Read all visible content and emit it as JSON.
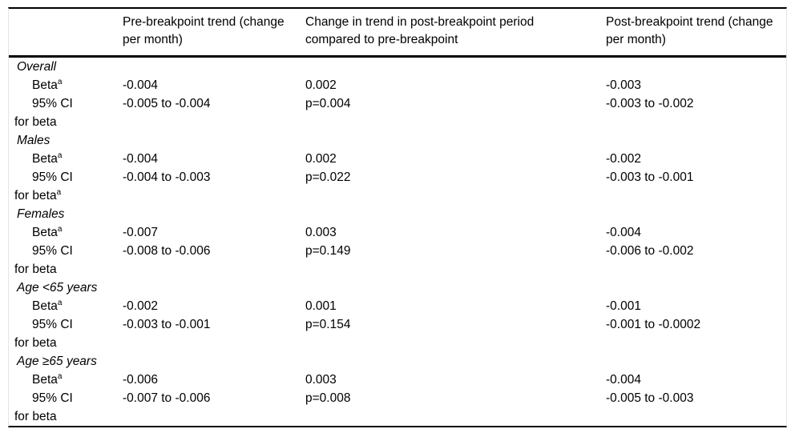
{
  "table": {
    "columns": {
      "label": "",
      "pre": "Pre-breakpoint trend (change per month)",
      "change": "Change in trend in post-breakpoint period compared to pre-breakpoint",
      "post": "Post-breakpoint trend (change per month)"
    },
    "sections": [
      {
        "group": "Overall",
        "beta": {
          "label": "Beta",
          "sup": "a",
          "pre": "-0.004",
          "change": "0.002",
          "post": "-0.003"
        },
        "ci": {
          "line1": "95% CI",
          "line2": "for beta",
          "sup": "",
          "pre": "-0.005 to -0.004",
          "change": "p=0.004",
          "post": "-0.003 to -0.002"
        }
      },
      {
        "group": "Males",
        "beta": {
          "label": "Beta",
          "sup": "a",
          "pre": "-0.004",
          "change": "0.002",
          "post": "-0.002"
        },
        "ci": {
          "line1": "95% CI",
          "line2": "for beta",
          "sup": "a",
          "pre": "-0.004 to -0.003",
          "change": "p=0.022",
          "post": "-0.003 to -0.001"
        }
      },
      {
        "group": "Females",
        "beta": {
          "label": "Beta",
          "sup": "a",
          "pre": "-0.007",
          "change": "0.003",
          "post": "-0.004"
        },
        "ci": {
          "line1": "95% CI",
          "line2": "for beta",
          "sup": "",
          "pre": "-0.008 to -0.006",
          "change": "p=0.149",
          "post": "-0.006 to -0.002"
        }
      },
      {
        "group": "Age <65 years",
        "beta": {
          "label": "Beta",
          "sup": "a",
          "pre": "-0.002",
          "change": "0.001",
          "post": "-0.001"
        },
        "ci": {
          "line1": "95% CI",
          "line2": "for beta",
          "sup": "",
          "pre": "-0.003 to -0.001",
          "change": "p=0.154",
          "post": "-0.001 to -0.0002"
        }
      },
      {
        "group": "Age ≥65 years",
        "beta": {
          "label": "Beta",
          "sup": "a",
          "pre": "-0.006",
          "change": "0.003",
          "post": "-0.004"
        },
        "ci": {
          "line1": "95% CI",
          "line2": "for beta",
          "sup": "",
          "pre": "-0.007 to -0.006",
          "change": "p=0.008",
          "post": "-0.005 to -0.003"
        }
      }
    ]
  },
  "chart_data": {
    "type": "table",
    "columns": [
      "",
      "Pre-breakpoint trend (change per month)",
      "Change in trend in post-breakpoint period compared to pre-breakpoint",
      "Post-breakpoint trend (change per month)"
    ],
    "rows": [
      [
        "Overall",
        "",
        "",
        ""
      ],
      [
        "Betaᵃ",
        "-0.004",
        "0.002",
        "-0.003"
      ],
      [
        "95% CI for beta",
        "-0.005 to -0.004",
        "p=0.004",
        "-0.003 to -0.002"
      ],
      [
        "Males",
        "",
        "",
        ""
      ],
      [
        "Betaᵃ",
        "-0.004",
        "0.002",
        "-0.002"
      ],
      [
        "95% CI for betaᵃ",
        "-0.004 to -0.003",
        "p=0.022",
        "-0.003 to -0.001"
      ],
      [
        "Females",
        "",
        "",
        ""
      ],
      [
        "Betaᵃ",
        "-0.007",
        "0.003",
        "-0.004"
      ],
      [
        "95% CI for beta",
        "-0.008 to -0.006",
        "p=0.149",
        "-0.006 to -0.002"
      ],
      [
        "Age <65 years",
        "",
        "",
        ""
      ],
      [
        "Betaᵃ",
        "-0.002",
        "0.001",
        "-0.001"
      ],
      [
        "95% CI for beta",
        "-0.003 to -0.001",
        "p=0.154",
        "-0.001 to -0.0002"
      ],
      [
        "Age ≥65 years",
        "",
        "",
        ""
      ],
      [
        "Betaᵃ",
        "-0.006",
        "0.003",
        "-0.004"
      ],
      [
        "95% CI for beta",
        "-0.007 to -0.006",
        "p=0.008",
        "-0.005 to -0.003"
      ]
    ]
  }
}
